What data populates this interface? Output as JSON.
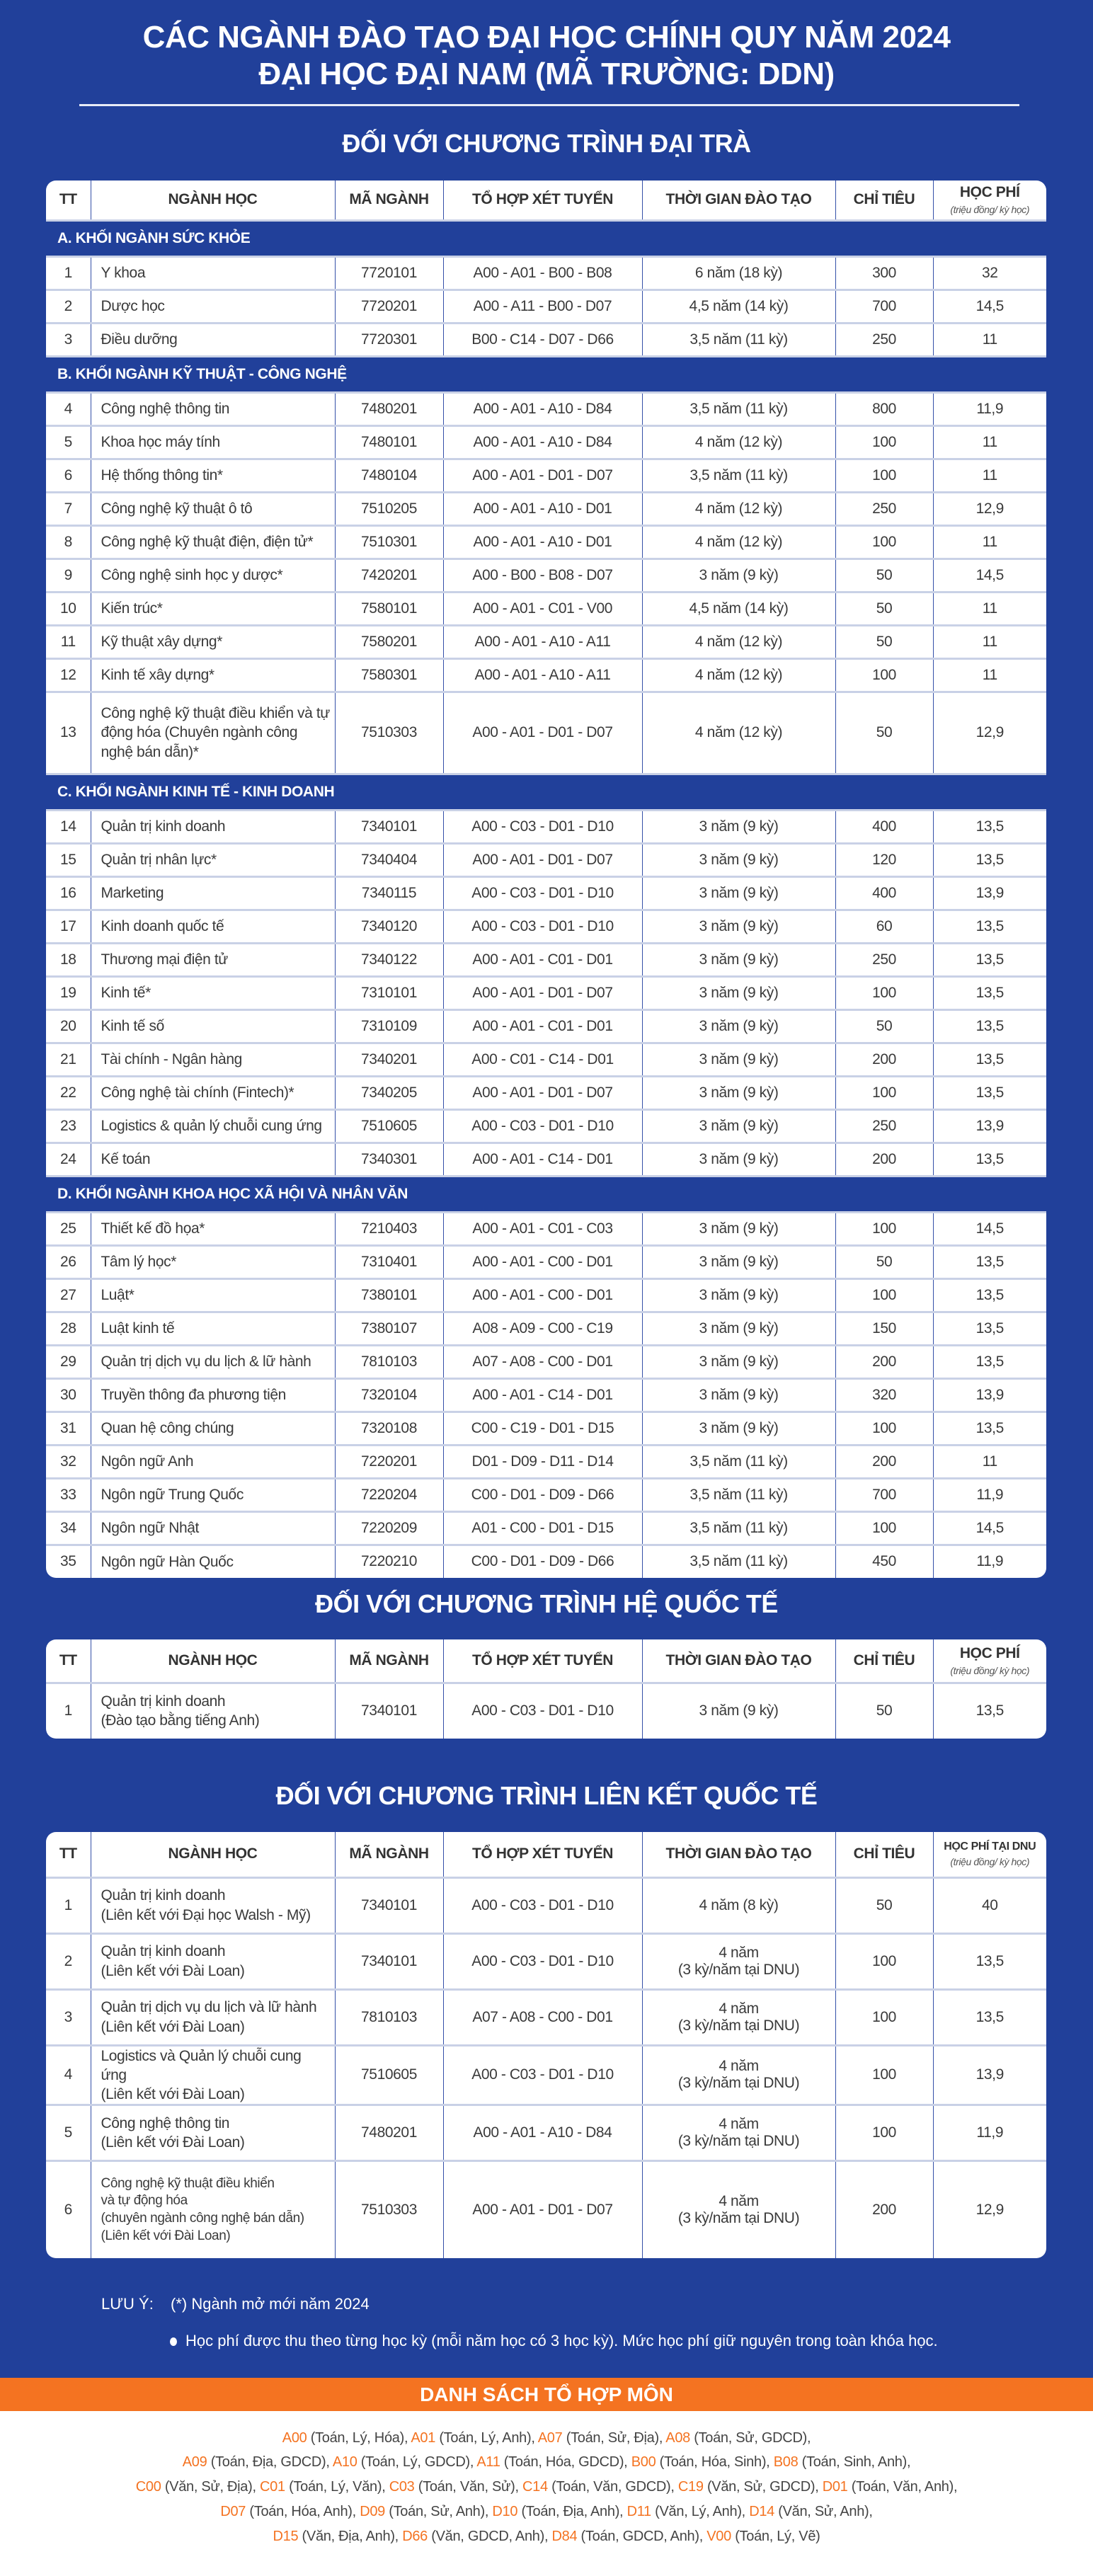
{
  "header": {
    "title_line1": "CÁC NGÀNH ĐÀO TẠO ĐẠI HỌC CHÍNH QUY NĂM 2024",
    "title_line2": "ĐẠI HỌC ĐẠI NAM (MÃ TRƯỜNG: DDN)"
  },
  "colors": {
    "background": "#21409a",
    "accent": "#f47321",
    "text": "#3a3a3a"
  },
  "columns": [
    "TT",
    "NGÀNH HỌC",
    "MÃ NGÀNH",
    "TỔ HỢP XÉT TUYỂN",
    "THỜI GIAN ĐÀO TẠO",
    "CHỈ TIÊU"
  ],
  "fee_header": "HỌC PHÍ",
  "fee_header_dnu": "HỌC PHÍ TẠI DNU",
  "fee_unit": "(triệu đồng/ kỳ học)",
  "programs": [
    {
      "heading": "ĐỐI VỚI CHƯƠNG TRÌNH ĐẠI TRÀ",
      "fee_label_key": "fee_header",
      "groups": [
        {
          "title": "A. KHỐI NGÀNH SỨC KHỎE",
          "rows": [
            [
              "1",
              "Y khoa",
              "7720101",
              "A00 - A01 - B00 - B08",
              "6 năm (18 kỳ)",
              "300",
              "32"
            ],
            [
              "2",
              "Dược học",
              "7720201",
              "A00 - A11 - B00 - D07",
              "4,5 năm (14 kỳ)",
              "700",
              "14,5"
            ],
            [
              "3",
              "Điều dưỡng",
              "7720301",
              "B00 - C14 - D07 - D66",
              "3,5 năm (11 kỳ)",
              "250",
              "11"
            ]
          ]
        },
        {
          "title": "B. KHỐI NGÀNH KỸ THUẬT - CÔNG NGHỆ",
          "rows": [
            [
              "4",
              "Công nghệ thông tin",
              "7480201",
              "A00 - A01 - A10 - D84",
              "3,5 năm (11 kỳ)",
              "800",
              "11,9"
            ],
            [
              "5",
              "Khoa học máy tính",
              "7480101",
              "A00 - A01 - A10 - D84",
              "4 năm (12 kỳ)",
              "100",
              "11"
            ],
            [
              "6",
              "Hệ thống thông tin*",
              "7480104",
              "A00 - A01 - D01 - D07",
              "3,5 năm (11 kỳ)",
              "100",
              "11"
            ],
            [
              "7",
              "Công nghệ kỹ thuật ô tô",
              "7510205",
              "A00 - A01 - A10 - D01",
              "4 năm (12 kỳ)",
              "250",
              "12,9"
            ],
            [
              "8",
              "Công nghệ kỹ thuật điện, điện tử*",
              "7510301",
              "A00 - A01 - A10 - D01",
              "4 năm (12 kỳ)",
              "100",
              "11"
            ],
            [
              "9",
              "Công nghệ sinh học y dược*",
              "7420201",
              "A00 - B00 - B08 - D07",
              "3 năm (9 kỳ)",
              "50",
              "14,5"
            ],
            [
              "10",
              "Kiến trúc*",
              "7580101",
              "A00 - A01 - C01 - V00",
              "4,5 năm (14 kỳ)",
              "50",
              "11"
            ],
            [
              "11",
              "Kỹ thuật xây dựng*",
              "7580201",
              "A00 - A01 - A10 - A11",
              "4 năm (12 kỳ)",
              "50",
              "11"
            ],
            [
              "12",
              "Kinh tế xây dựng*",
              "7580301",
              "A00 - A01 - A10 - A11",
              "4 năm (12 kỳ)",
              "100",
              "11"
            ],
            [
              "13",
              "Công nghệ kỹ thuật điều khiển và tự động hóa (Chuyên ngành công nghệ bán dẫn)*",
              "7510303",
              "A00 - A01 - D01 - D07",
              "4 năm (12 kỳ)",
              "50",
              "12,9"
            ]
          ]
        },
        {
          "title": "C. KHỐI NGÀNH KINH TẾ - KINH DOANH",
          "rows": [
            [
              "14",
              "Quản trị kinh doanh",
              "7340101",
              "A00 - C03 - D01 - D10",
              "3 năm (9 kỳ)",
              "400",
              "13,5"
            ],
            [
              "15",
              "Quản trị nhân lực*",
              "7340404",
              "A00 - A01 - D01 - D07",
              "3 năm (9 kỳ)",
              "120",
              "13,5"
            ],
            [
              "16",
              "Marketing",
              "7340115",
              "A00 - C03 - D01 - D10",
              "3 năm (9 kỳ)",
              "400",
              "13,9"
            ],
            [
              "17",
              "Kinh doanh quốc tế",
              "7340120",
              "A00 - C03 - D01 - D10",
              "3 năm (9 kỳ)",
              "60",
              "13,5"
            ],
            [
              "18",
              "Thương mại điện tử",
              "7340122",
              "A00 - A01 - C01 - D01",
              "3 năm (9 kỳ)",
              "250",
              "13,5"
            ],
            [
              "19",
              "Kinh tế*",
              "7310101",
              "A00 - A01 - D01 - D07",
              "3 năm (9 kỳ)",
              "100",
              "13,5"
            ],
            [
              "20",
              "Kinh tế số",
              "7310109",
              "A00 - A01 - C01 - D01",
              "3 năm (9 kỳ)",
              "50",
              "13,5"
            ],
            [
              "21",
              "Tài chính - Ngân hàng",
              "7340201",
              "A00 - C01 - C14 - D01",
              "3 năm (9 kỳ)",
              "200",
              "13,5"
            ],
            [
              "22",
              "Công nghệ tài chính (Fintech)*",
              "7340205",
              "A00 - A01 - D01 - D07",
              "3 năm (9 kỳ)",
              "100",
              "13,5"
            ],
            [
              "23",
              "Logistics & quản lý chuỗi cung ứng",
              "7510605",
              "A00 - C03 - D01 - D10",
              "3 năm (9 kỳ)",
              "250",
              "13,9"
            ],
            [
              "24",
              "Kế toán",
              "7340301",
              "A00 - A01 - C14 - D01",
              "3 năm (9 kỳ)",
              "200",
              "13,5"
            ]
          ]
        },
        {
          "title": "D. KHỐI NGÀNH KHOA HỌC XÃ HỘI VÀ NHÂN VĂN",
          "rows": [
            [
              "25",
              "Thiết kế đồ họa*",
              "7210403",
              "A00 - A01 - C01 - C03",
              "3 năm (9 kỳ)",
              "100",
              "14,5"
            ],
            [
              "26",
              "Tâm lý học*",
              "7310401",
              "A00 - A01 - C00 - D01",
              "3 năm (9 kỳ)",
              "50",
              "13,5"
            ],
            [
              "27",
              "Luật*",
              "7380101",
              "A00 - A01 - C00 - D01",
              "3 năm (9 kỳ)",
              "100",
              "13,5"
            ],
            [
              "28",
              "Luật kinh tế",
              "7380107",
              "A08 - A09 - C00 - C19",
              "3 năm (9 kỳ)",
              "150",
              "13,5"
            ],
            [
              "29",
              "Quản trị dịch vụ du lịch & lữ hành",
              "7810103",
              "A07 -  A08 - C00 - D01",
              "3 năm (9 kỳ)",
              "200",
              "13,5"
            ],
            [
              "30",
              "Truyền thông đa phương tiện",
              "7320104",
              "A00 - A01 - C14 - D01",
              "3 năm (9 kỳ)",
              "320",
              "13,9"
            ],
            [
              "31",
              "Quan hệ công chúng",
              "7320108",
              "C00 - C19 - D01 - D15",
              "3 năm (9 kỳ)",
              "100",
              "13,5"
            ],
            [
              "32",
              "Ngôn ngữ Anh",
              "7220201",
              "D01 - D09 - D11 - D14",
              "3,5 năm (11 kỳ)",
              "200",
              "11"
            ],
            [
              "33",
              "Ngôn ngữ Trung Quốc",
              "7220204",
              "C00 - D01 - D09 - D66",
              "3,5 năm (11 kỳ)",
              "700",
              "11,9"
            ],
            [
              "34",
              "Ngôn ngữ Nhật",
              "7220209",
              "A01 - C00 - D01 - D15",
              "3,5 năm (11 kỳ)",
              "100",
              "14,5"
            ],
            [
              "35",
              "Ngôn ngữ Hàn Quốc",
              "7220210",
              "C00 - D01 - D09 - D66",
              "3,5 năm (11 kỳ)",
              "450",
              "11,9"
            ]
          ]
        }
      ]
    },
    {
      "heading": "ĐỐI VỚI CHƯƠNG TRÌNH HỆ QUỐC TẾ",
      "fee_label_key": "fee_header",
      "groups": [
        {
          "title": "",
          "rows": [
            [
              "1",
              "Quản trị kinh doanh\n(Đào tạo bằng tiếng Anh)",
              "7340101",
              "A00 - C03 - D01 - D10",
              "3 năm (9 kỳ)",
              "50",
              "13,5"
            ]
          ]
        }
      ]
    },
    {
      "heading": "ĐỐI VỚI CHƯƠNG TRÌNH LIÊN KẾT QUỐC TẾ",
      "fee_label_key": "fee_header_dnu",
      "groups": [
        {
          "title": "",
          "rows": [
            [
              "1",
              "Quản trị kinh doanh\n(Liên kết với Đại học Walsh - Mỹ)",
              "7340101",
              "A00 - C03 - D01 - D10",
              "4 năm (8 kỳ)",
              "50",
              "40"
            ],
            [
              "2",
              "Quản trị kinh doanh\n(Liên kết với Đài Loan)",
              "7340101",
              "A00 - C03 - D01 - D10",
              "4 năm\n(3 kỳ/năm tại DNU)",
              "100",
              "13,5"
            ],
            [
              "3",
              "Quản trị dịch vụ du lịch và lữ hành\n(Liên kết với Đài Loan)",
              "7810103",
              "A07 -  A08 - C00 - D01",
              "4 năm\n(3 kỳ/năm tại DNU)",
              "100",
              "13,5"
            ],
            [
              "4",
              "Logistics và Quản lý chuỗi cung ứng\n(Liên kết với Đài Loan)",
              "7510605",
              "A00 - C03 - D01 - D10",
              "4 năm\n(3 kỳ/năm tại DNU)",
              "100",
              "13,9"
            ],
            [
              "5",
              "Công nghệ thông tin\n(Liên kết với Đài Loan)",
              "7480201",
              "A00 - A01 - A10 - D84",
              "4 năm\n(3 kỳ/năm tại DNU)",
              "100",
              "11,9"
            ],
            [
              "6",
              "Công nghệ kỹ thuật điều khiển\nvà tự động hóa\n(chuyên ngành công nghệ bán dẫn)\n(Liên kết với Đài Loan)",
              "7510303",
              "A00 - A01 - D01 - D07",
              "4 năm\n(3 kỳ/năm tại DNU)",
              "200",
              "12,9"
            ]
          ]
        }
      ]
    }
  ],
  "notes": {
    "label": "LƯU Ý:",
    "new_major": "(*) Ngành mở mới năm 2024",
    "fee_note": "Học phí được thu theo từng học kỳ (mỗi năm học có 3 học kỳ). Mức học phí giữ nguyên trong toàn khóa học."
  },
  "combos": {
    "title": "DANH SÁCH TỔ HỢP MÔN",
    "lines": [
      [
        [
          "A00",
          "(Toán, Lý, Hóa),"
        ],
        [
          "A01",
          "(Toán, Lý, Anh),"
        ],
        [
          "A07",
          "(Toán, Sử, Địa),"
        ],
        [
          "A08",
          "(Toán, Sử, GDCD),"
        ]
      ],
      [
        [
          "A09",
          "(Toán, Địa, GDCD),"
        ],
        [
          "A10",
          "(Toán, Lý, GDCD),"
        ],
        [
          "A11",
          "(Toán, Hóa, GDCD),"
        ],
        [
          "B00",
          "(Toán, Hóa, Sinh),"
        ],
        [
          "B08",
          "(Toán, Sinh, Anh),"
        ]
      ],
      [
        [
          "C00",
          "(Văn, Sử, Địa),"
        ],
        [
          "C01",
          "(Toán, Lý, Văn),"
        ],
        [
          "C03",
          "(Toán, Văn, Sử),"
        ],
        [
          "C14",
          "(Toán, Văn, GDCD),"
        ],
        [
          "C19",
          "(Văn, Sử, GDCD),"
        ],
        [
          "D01",
          "(Toán, Văn, Anh),"
        ]
      ],
      [
        [
          "D07",
          "(Toán, Hóa, Anh),"
        ],
        [
          "D09",
          "(Toán, Sử, Anh),"
        ],
        [
          "D10",
          "(Toán, Địa, Anh),"
        ],
        [
          "D11",
          "(Văn, Lý, Anh),"
        ],
        [
          "D14",
          "(Văn, Sử, Anh),"
        ]
      ],
      [
        [
          "D15",
          "(Văn, Địa, Anh),"
        ],
        [
          "D66",
          "(Văn, GDCD, Anh),"
        ],
        [
          "D84",
          "(Toán, GDCD, Anh),"
        ],
        [
          "V00",
          "(Toán, Lý, Vẽ)"
        ]
      ]
    ]
  }
}
